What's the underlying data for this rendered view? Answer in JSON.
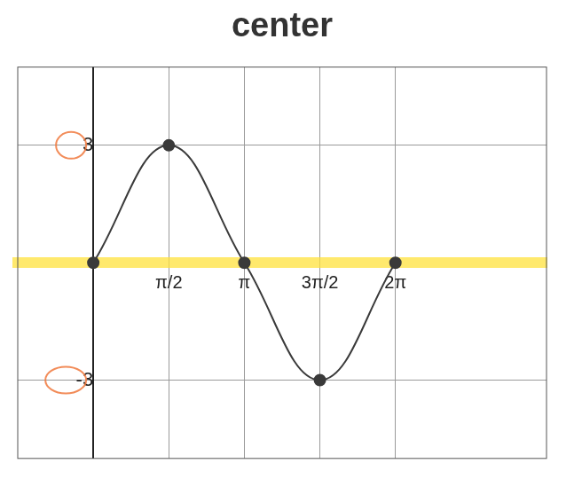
{
  "chart_data": {
    "type": "line",
    "title": "center",
    "x": [
      0,
      1.5708,
      3.1416,
      4.7124,
      6.2832
    ],
    "values": [
      0,
      3,
      0,
      -3,
      0
    ],
    "color": "#3a3a3a",
    "marker": "circle",
    "xlim": [
      -1.5708,
      9.4248
    ],
    "xticks": [
      {
        "value": 1.5708,
        "label": "π/2"
      },
      {
        "value": 3.1416,
        "label": "π"
      },
      {
        "value": 4.7124,
        "label": "3π/2"
      },
      {
        "value": 6.2832,
        "label": "2π"
      }
    ],
    "ylim": [
      -5,
      5
    ],
    "yticks": [
      -3,
      3
    ],
    "grid": true
  }
}
